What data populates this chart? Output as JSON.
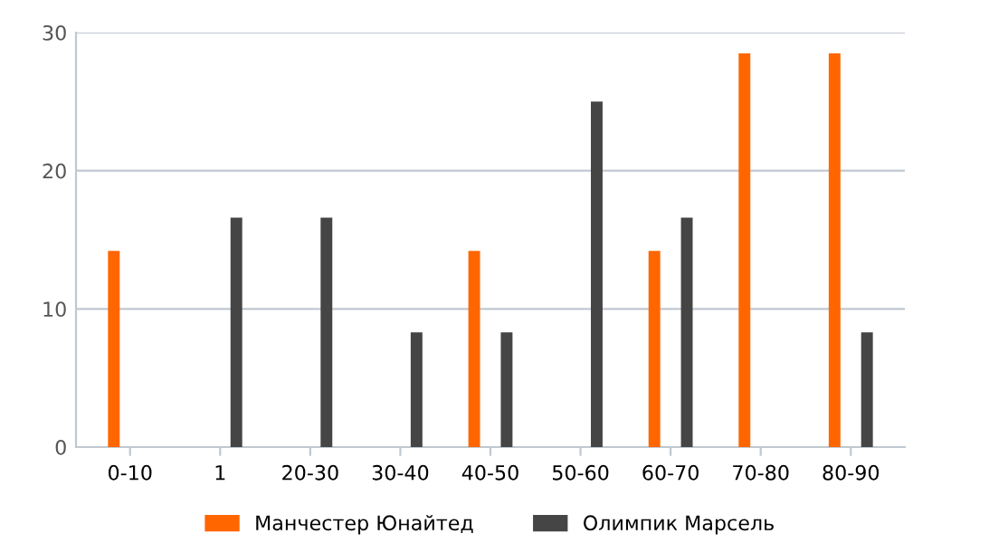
{
  "chart_data": {
    "type": "bar",
    "categories": [
      "0-10",
      "1",
      "20-30",
      "30-40",
      "40-50",
      "50-60",
      "60-70",
      "70-80",
      "80-90"
    ],
    "series": [
      {
        "name": "Манчестер Юнайтед",
        "color": "#ff6600",
        "values": [
          14.2,
          null,
          null,
          null,
          14.2,
          null,
          14.2,
          28.5,
          28.5
        ]
      },
      {
        "name": "Олимпик Марсель",
        "color": "#454545",
        "values": [
          null,
          16.6,
          16.6,
          8.3,
          8.3,
          25,
          16.6,
          null,
          8.3
        ]
      }
    ],
    "ylim": [
      0,
      30
    ],
    "yticks": [
      0,
      10,
      20,
      30
    ],
    "grid": "y",
    "legend": "bottom"
  }
}
